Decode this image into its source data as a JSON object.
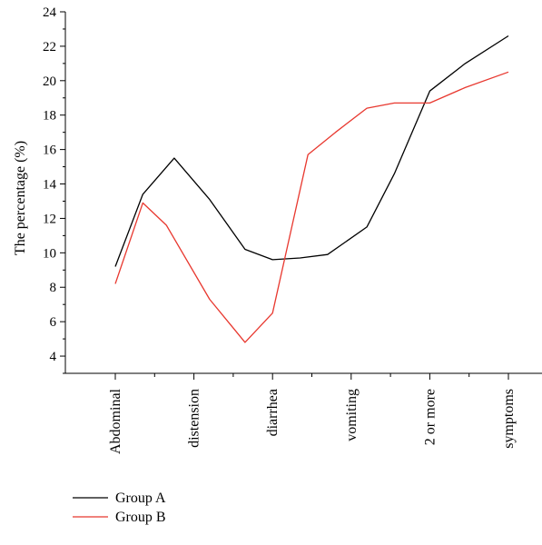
{
  "chart_data": {
    "type": "line",
    "title": "",
    "xlabel": "",
    "ylabel": "The percentage (%)",
    "ylim": [
      3,
      24
    ],
    "y_ticks": [
      4,
      6,
      8,
      10,
      12,
      14,
      16,
      18,
      20,
      22,
      24
    ],
    "x_categories": [
      "Abdominal",
      "distension",
      "diarrhea",
      "vomiting",
      "2 or more",
      "symptoms"
    ],
    "x_range": [
      0,
      5.5
    ],
    "grid": false,
    "legend_position": "bottom-left",
    "series": [
      {
        "name": "Group A",
        "color": "#000000",
        "x": [
          0,
          0.35,
          0.75,
          1.2,
          1.65,
          2.0,
          2.35,
          2.7,
          3.2,
          3.55,
          4.0,
          4.45,
          5.0
        ],
        "y": [
          9.2,
          13.4,
          15.5,
          13.1,
          10.2,
          9.6,
          9.7,
          9.9,
          11.5,
          14.6,
          19.4,
          21.0,
          22.6
        ]
      },
      {
        "name": "Group B",
        "color": "#e8382f",
        "x": [
          0,
          0.35,
          0.65,
          1.2,
          1.65,
          2.0,
          2.45,
          2.8,
          3.2,
          3.55,
          4.0,
          4.45,
          5.0
        ],
        "y": [
          8.2,
          12.9,
          11.6,
          7.3,
          4.8,
          6.5,
          15.7,
          17.0,
          18.4,
          18.7,
          18.7,
          19.6,
          20.5
        ]
      }
    ]
  }
}
